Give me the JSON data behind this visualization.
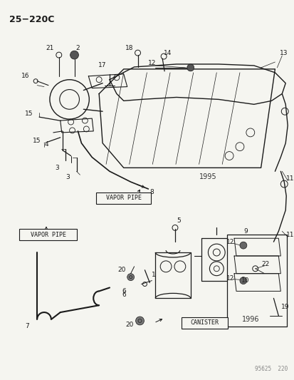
{
  "title": "25−220C",
  "background_color": "#f5f5f0",
  "line_color": "#1a1a1a",
  "figsize": [
    4.14,
    5.33
  ],
  "dpi": 100,
  "watermark": "95625  220",
  "vp1_label": "VAPOR PIPE",
  "vp2_label": "VAPOR PIPE",
  "canister_label": "CANISTER",
  "year1": "1995",
  "year2": "1996"
}
